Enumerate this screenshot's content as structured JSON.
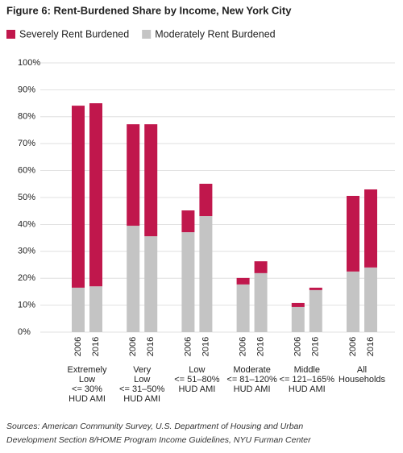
{
  "chart_data": {
    "type": "stacked-bar",
    "title": "Figure 6: Rent-Burdened Share by Income, New York City",
    "categories": [
      "2006",
      "2016",
      "2006",
      "2016",
      "2006",
      "2016",
      "2006",
      "2016",
      "2006",
      "2016",
      "2006",
      "2016"
    ],
    "group_labels": [
      [
        "Extremely",
        "Low",
        "<= 30%",
        "HUD AMI"
      ],
      [
        "Very",
        "Low",
        "<= 31–50%",
        "HUD AMI"
      ],
      [
        "Low",
        "<= 51–80%",
        "HUD AMI"
      ],
      [
        "Moderate",
        "<= 81–120%",
        "HUD AMI"
      ],
      [
        "Middle",
        "<= 121–165%",
        "HUD AMI"
      ],
      [
        "All",
        "Households"
      ]
    ],
    "series": [
      {
        "name": "Severely Rent Burdened",
        "color": "#c0174c",
        "values": [
          67.6,
          68,
          37.7,
          41.6,
          8.1,
          12,
          2.4,
          4.4,
          1.5,
          0.9,
          28.1,
          29
        ]
      },
      {
        "name": "Moderately Rent Burdened",
        "color": "#c4c4c4",
        "values": [
          16.5,
          17,
          39.5,
          35.6,
          37.1,
          43.1,
          17.7,
          21.9,
          9.3,
          15.6,
          22.5,
          24
        ]
      }
    ],
    "ylim": [
      0,
      100
    ],
    "yticks": [
      {
        "value": 0,
        "label": "0%"
      },
      {
        "value": 10,
        "label": "10%"
      },
      {
        "value": 20,
        "label": "20%"
      },
      {
        "value": 30,
        "label": "30%"
      },
      {
        "value": 40,
        "label": "40%"
      },
      {
        "value": 50,
        "label": "50%"
      },
      {
        "value": 60,
        "label": "60%"
      },
      {
        "value": 70,
        "label": "70%"
      },
      {
        "value": 80,
        "label": "80%"
      },
      {
        "value": 90,
        "label": "90%"
      },
      {
        "value": 100,
        "label": "100%"
      }
    ],
    "grid": true,
    "source": [
      "Sources: American Community Survey, U.S. Department of Housing and Urban",
      "Development Section 8/HOME Program Income Guidelines, NYU Furman Center"
    ]
  }
}
